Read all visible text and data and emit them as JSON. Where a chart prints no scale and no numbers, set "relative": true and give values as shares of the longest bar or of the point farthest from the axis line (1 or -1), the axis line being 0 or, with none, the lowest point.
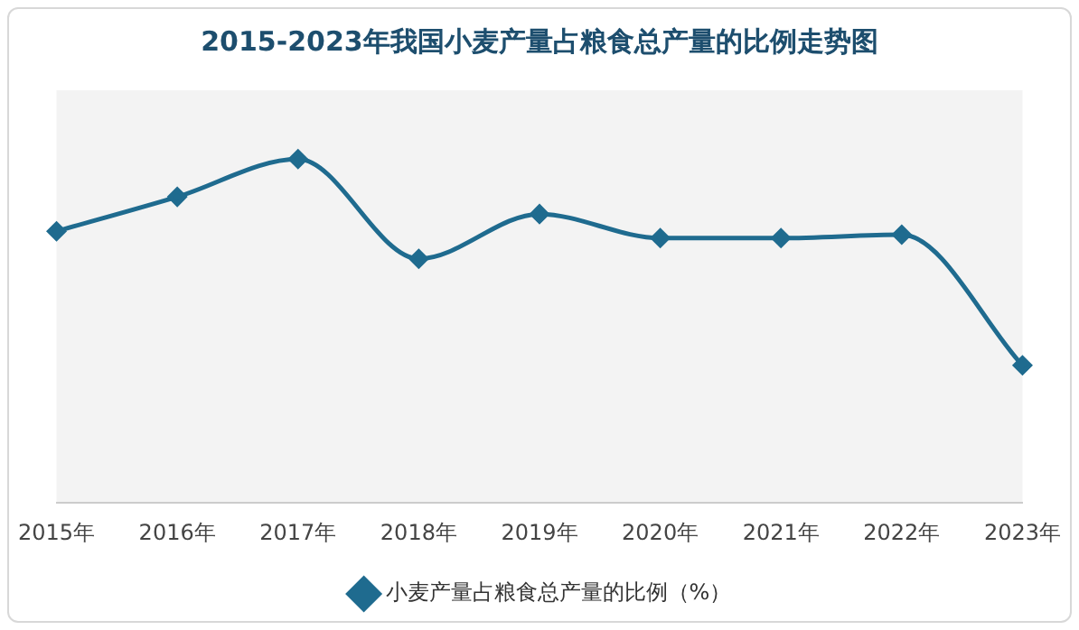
{
  "chart_data": {
    "type": "line",
    "title": "2015-2023年我国小麦产量占粮食总产量的比例走势图",
    "relative": true,
    "categories": [
      "2015年",
      "2016年",
      "2017年",
      "2018年",
      "2019年",
      "2020年",
      "2021年",
      "2022年",
      "2023年"
    ],
    "series": [
      {
        "name": "小麦产量占粮食总产量的比例（%）",
        "color": "#1f6b8f",
        "values": [
          0.79,
          0.89,
          1,
          0.71,
          0.84,
          0.77,
          0.77,
          0.78,
          0.4
        ]
      }
    ],
    "marker": "diamond",
    "legend": "bottom",
    "grid": false
  }
}
